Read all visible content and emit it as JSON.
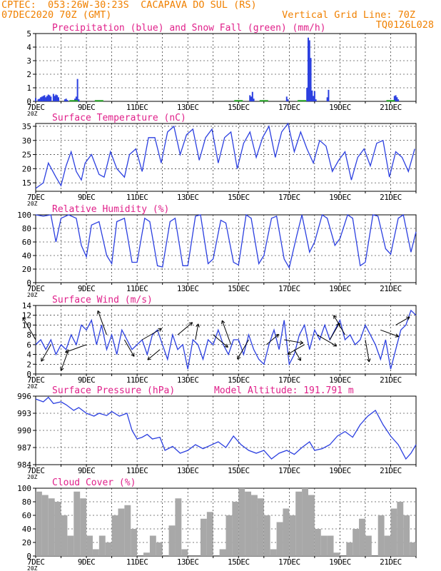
{
  "header": {
    "line1_left": "CPTEC:  053:26W-30:23S  CACAPAVA DO SUL (RS)",
    "line2_left": "07DEC2020 70Z (GMT)",
    "line2_right": "Vertical Grid Line: 70Z",
    "code": "TQ0126L028"
  },
  "colors": {
    "header_text": "#f08000",
    "panel_title": "#e0208a",
    "series_blue": "#2b3fe0",
    "snow_green": "#20a020",
    "cloud_gray": "#a8a8a8",
    "wind_arrow": "#000000"
  },
  "time_axis": {
    "labels": [
      "7DEC",
      "9DEC",
      "11DEC",
      "13DEC",
      "15DEC",
      "17DEC",
      "19DEC",
      "21DEC"
    ],
    "day_range": [
      7,
      22
    ],
    "label_days": [
      7,
      9,
      11,
      13,
      15,
      17,
      19,
      21
    ],
    "stray_label": "20Z"
  },
  "chart_data": [
    {
      "id": "precip",
      "type": "bar",
      "title": "Precipitation (blue) and Snow Fall (green) (mm/h)",
      "ylim": [
        0,
        5
      ],
      "yticks": [
        0,
        1,
        2,
        3,
        4,
        5
      ],
      "grid": true,
      "x_unit": "day of December 2020",
      "series": [
        {
          "name": "Precipitation",
          "x": [
            7.0,
            7.1,
            7.15,
            7.2,
            7.25,
            7.3,
            7.35,
            7.4,
            7.45,
            7.5,
            7.55,
            7.6,
            7.7,
            7.75,
            7.8,
            7.85,
            7.9,
            8.15,
            8.2,
            8.25,
            8.55,
            8.6,
            8.65,
            8.7,
            15.45,
            15.5,
            15.55,
            15.6,
            16.9,
            16.95,
            17.7,
            17.75,
            17.8,
            17.85,
            17.9,
            17.95,
            18.0,
            18.05,
            18.5,
            18.55,
            21.15,
            21.2,
            21.25,
            21.3
          ],
          "values": [
            0.25,
            0.15,
            0.2,
            0.3,
            0.35,
            0.4,
            0.45,
            0.3,
            0.4,
            0.5,
            0.45,
            0.35,
            0.55,
            0.4,
            0.5,
            0.45,
            0.3,
            0.15,
            0.2,
            0.1,
            0.2,
            0.35,
            1.65,
            0.15,
            0.45,
            0.35,
            0.7,
            0.2,
            0.35,
            0.15,
            1.0,
            4.7,
            4.5,
            3.2,
            0.8,
            0.4,
            0.75,
            0.15,
            0.3,
            0.85,
            0.4,
            0.45,
            0.3,
            0.15
          ]
        },
        {
          "name": "Snow Fall",
          "x": [
            8.5,
            9.5,
            15.0,
            16.0,
            17.5,
            21.0
          ],
          "values": [
            0.04,
            0.04,
            0.04,
            0.04,
            0.04,
            0.04
          ]
        }
      ]
    },
    {
      "id": "temp",
      "type": "line",
      "title": "Surface Temperature (nC)",
      "ylim": [
        12,
        36
      ],
      "yticks": [
        15,
        20,
        25,
        30,
        35
      ],
      "grid": true,
      "series": [
        {
          "name": "",
          "x": [
            7.0,
            7.3,
            7.5,
            7.8,
            8.0,
            8.2,
            8.4,
            8.6,
            8.8,
            8.95,
            9.2,
            9.5,
            9.7,
            9.95,
            10.2,
            10.5,
            10.7,
            10.95,
            11.2,
            11.45,
            11.7,
            11.95,
            12.2,
            12.45,
            12.7,
            12.95,
            13.2,
            13.45,
            13.7,
            13.95,
            14.2,
            14.45,
            14.7,
            14.95,
            15.2,
            15.45,
            15.7,
            15.95,
            16.2,
            16.45,
            16.7,
            16.95,
            17.2,
            17.45,
            17.7,
            17.95,
            18.2,
            18.45,
            18.7,
            18.95,
            19.2,
            19.45,
            19.7,
            19.95,
            20.2,
            20.45,
            20.7,
            20.95,
            21.2,
            21.45,
            21.7,
            21.95
          ],
          "values": [
            13,
            15,
            22,
            17,
            14,
            21,
            26,
            19,
            16,
            22,
            25,
            18,
            17,
            26,
            20,
            17,
            25,
            27,
            19,
            31,
            31,
            22,
            33,
            35,
            25,
            32,
            34,
            23,
            31,
            34,
            22,
            31,
            33,
            20,
            29,
            33,
            24,
            31,
            35,
            24,
            33,
            36,
            26,
            33,
            27,
            22,
            30,
            28,
            19,
            23,
            26,
            16,
            24,
            27,
            21,
            29,
            30,
            17,
            26,
            24,
            19,
            27
          ]
        }
      ]
    },
    {
      "id": "rh",
      "type": "line",
      "title": "Relative Humidity (%)",
      "ylim": [
        0,
        100
      ],
      "yticks": [
        0,
        20,
        40,
        60,
        80,
        100
      ],
      "grid": true,
      "series": [
        {
          "name": "",
          "x": [
            7.0,
            7.3,
            7.6,
            7.8,
            8.0,
            8.3,
            8.6,
            8.8,
            9.0,
            9.2,
            9.5,
            9.8,
            10.0,
            10.2,
            10.5,
            10.8,
            11.0,
            11.3,
            11.5,
            11.8,
            12.0,
            12.3,
            12.5,
            12.8,
            13.0,
            13.3,
            13.5,
            13.8,
            14.0,
            14.3,
            14.5,
            14.8,
            15.0,
            15.3,
            15.5,
            15.8,
            16.0,
            16.3,
            16.5,
            16.8,
            17.0,
            17.3,
            17.5,
            17.8,
            18.0,
            18.3,
            18.5,
            18.8,
            19.0,
            19.3,
            19.5,
            19.8,
            20.0,
            20.3,
            20.5,
            20.8,
            21.0,
            21.3,
            21.5,
            21.8,
            22.0
          ],
          "values": [
            100,
            98,
            100,
            60,
            95,
            100,
            95,
            55,
            38,
            85,
            90,
            40,
            28,
            90,
            95,
            30,
            30,
            95,
            90,
            25,
            23,
            90,
            95,
            25,
            25,
            98,
            100,
            28,
            35,
            92,
            88,
            30,
            26,
            100,
            95,
            28,
            40,
            95,
            98,
            35,
            22,
            70,
            100,
            45,
            60,
            100,
            95,
            55,
            65,
            100,
            95,
            25,
            30,
            100,
            98,
            50,
            42,
            95,
            100,
            45,
            75
          ]
        }
      ]
    },
    {
      "id": "wind",
      "type": "line",
      "title": "Surface Wind (m/s)",
      "ylim": [
        0,
        14
      ],
      "yticks": [
        0,
        2,
        4,
        6,
        8,
        10,
        12,
        14
      ],
      "grid": true,
      "series": [
        {
          "name": "",
          "x": [
            7.0,
            7.2,
            7.4,
            7.6,
            7.8,
            8.0,
            8.2,
            8.4,
            8.6,
            8.8,
            9.0,
            9.2,
            9.4,
            9.6,
            9.8,
            10.0,
            10.2,
            10.4,
            10.6,
            10.8,
            11.0,
            11.2,
            11.4,
            11.6,
            11.8,
            12.0,
            12.2,
            12.4,
            12.6,
            12.8,
            13.0,
            13.2,
            13.4,
            13.6,
            13.8,
            14.0,
            14.2,
            14.4,
            14.6,
            14.8,
            15.0,
            15.2,
            15.4,
            15.6,
            15.8,
            16.0,
            16.2,
            16.4,
            16.6,
            16.8,
            17.0,
            17.2,
            17.4,
            17.6,
            17.8,
            18.0,
            18.2,
            18.4,
            18.6,
            18.8,
            19.0,
            19.2,
            19.4,
            19.6,
            19.8,
            20.0,
            20.2,
            20.4,
            20.6,
            20.8,
            21.0,
            21.2,
            21.4,
            21.6,
            21.8,
            22.0
          ],
          "values": [
            6,
            7,
            5,
            7,
            4,
            6,
            5,
            8,
            6,
            10,
            9,
            11,
            6,
            10,
            5,
            8,
            4,
            9,
            7,
            5,
            6,
            7,
            4,
            8,
            9,
            6,
            3,
            8,
            5,
            6,
            1,
            7,
            6,
            3,
            7,
            6,
            9,
            6,
            4,
            7,
            7,
            4,
            8,
            5,
            3,
            2,
            6,
            9,
            5,
            11,
            2,
            4,
            8,
            10,
            5,
            9,
            7,
            10,
            7,
            9,
            11,
            7,
            8,
            6,
            7,
            10,
            8,
            6,
            3,
            7,
            1,
            5,
            9,
            10,
            13,
            12
          ]
        },
        {
          "name": "",
          "x": [
            7.0,
            7.6,
            8.3,
            9.0,
            9.8,
            10.5,
            11.2,
            11.9,
            12.6,
            13.3,
            14.0,
            14.7,
            15.4,
            16.1,
            16.8,
            17.2,
            17.6,
            18.1,
            18.6,
            19.2,
            20.0,
            20.6,
            21.2
          ],
          "values": [
            7,
            6,
            5,
            6,
            8,
            7,
            7,
            5,
            8,
            7,
            8,
            6,
            7,
            6,
            7,
            5,
            6,
            8,
            7,
            8,
            7,
            9,
            10
          ],
          "speed": [
            4,
            3,
            3.5,
            3.5,
            4,
            3,
            3.5,
            2.5,
            3,
            2.5,
            3,
            4,
            3.5,
            2.5,
            3,
            2,
            3,
            3.5,
            3,
            3.5,
            3.5,
            3,
            2.5
          ],
          "direction_deg": [
            120,
            240,
            250,
            200,
            110,
            300,
            30,
            220,
            40,
            80,
            320,
            110,
            240,
            40,
            350,
            300,
            210,
            330,
            60,
            120,
            280,
            340,
            30
          ]
        }
      ]
    },
    {
      "id": "pressure",
      "type": "line",
      "title": "Surface Pressure (hPa)",
      "subtitle": "Model Altitude: 191.791 m",
      "ylim": [
        984,
        996
      ],
      "yticks": [
        984,
        987,
        990,
        993,
        996
      ],
      "grid": true,
      "series": [
        {
          "name": "",
          "x": [
            7.0,
            7.3,
            7.5,
            7.7,
            8.0,
            8.2,
            8.5,
            8.7,
            9.0,
            9.3,
            9.5,
            9.8,
            10.0,
            10.3,
            10.6,
            10.8,
            11.0,
            11.2,
            11.4,
            11.6,
            11.9,
            12.1,
            12.4,
            12.7,
            13.0,
            13.3,
            13.6,
            13.9,
            14.2,
            14.5,
            14.8,
            15.1,
            15.4,
            15.7,
            16.0,
            16.3,
            16.6,
            16.9,
            17.2,
            17.5,
            17.8,
            18.0,
            18.3,
            18.6,
            18.9,
            19.2,
            19.5,
            19.8,
            20.1,
            20.4,
            20.7,
            21.0,
            21.3,
            21.6,
            21.8,
            22.0
          ],
          "values": [
            995.5,
            995.0,
            995.8,
            994.7,
            995.0,
            994.5,
            993.5,
            994.0,
            993.0,
            992.5,
            993.0,
            992.6,
            993.3,
            992.5,
            993.0,
            990.0,
            988.5,
            988.8,
            989.3,
            988.5,
            988.8,
            986.5,
            987.2,
            986.0,
            986.5,
            987.5,
            986.8,
            987.4,
            988.0,
            987.0,
            989.0,
            987.5,
            986.5,
            986.0,
            986.5,
            985.0,
            986.0,
            986.5,
            985.8,
            987.0,
            988.0,
            986.5,
            986.8,
            987.5,
            989.0,
            989.8,
            988.8,
            991.0,
            992.5,
            993.5,
            991.0,
            989.0,
            987.5,
            985.0,
            986.0,
            987.5
          ]
        }
      ]
    },
    {
      "id": "cloud",
      "type": "bar",
      "title": "Cloud Cover (%)",
      "ylim": [
        0,
        100
      ],
      "yticks": [
        0,
        20,
        40,
        60,
        80,
        100
      ],
      "grid": true,
      "series": [
        {
          "name": "",
          "x": [
            7.0,
            7.25,
            7.5,
            7.75,
            8.0,
            8.25,
            8.5,
            8.75,
            9.0,
            9.25,
            9.5,
            9.75,
            10.0,
            10.25,
            10.5,
            10.75,
            11.0,
            11.25,
            11.5,
            11.75,
            12.0,
            12.25,
            12.5,
            12.75,
            13.0,
            13.25,
            13.5,
            13.75,
            14.0,
            14.25,
            14.5,
            14.75,
            15.0,
            15.25,
            15.5,
            15.75,
            16.0,
            16.25,
            16.5,
            16.75,
            17.0,
            17.25,
            17.5,
            17.75,
            18.0,
            18.25,
            18.5,
            18.75,
            19.0,
            19.25,
            19.5,
            19.75,
            20.0,
            20.25,
            20.5,
            20.75,
            21.0,
            21.25,
            21.5,
            21.75,
            22.0
          ],
          "values": [
            95,
            90,
            85,
            80,
            60,
            30,
            95,
            85,
            30,
            10,
            30,
            20,
            60,
            70,
            75,
            40,
            0,
            5,
            30,
            20,
            0,
            45,
            85,
            10,
            0,
            0,
            55,
            65,
            0,
            10,
            60,
            80,
            100,
            95,
            90,
            85,
            60,
            10,
            50,
            70,
            60,
            95,
            100,
            90,
            40,
            30,
            30,
            5,
            0,
            20,
            40,
            55,
            30,
            0,
            60,
            30,
            70,
            80,
            60,
            20,
            0
          ]
        }
      ]
    }
  ]
}
